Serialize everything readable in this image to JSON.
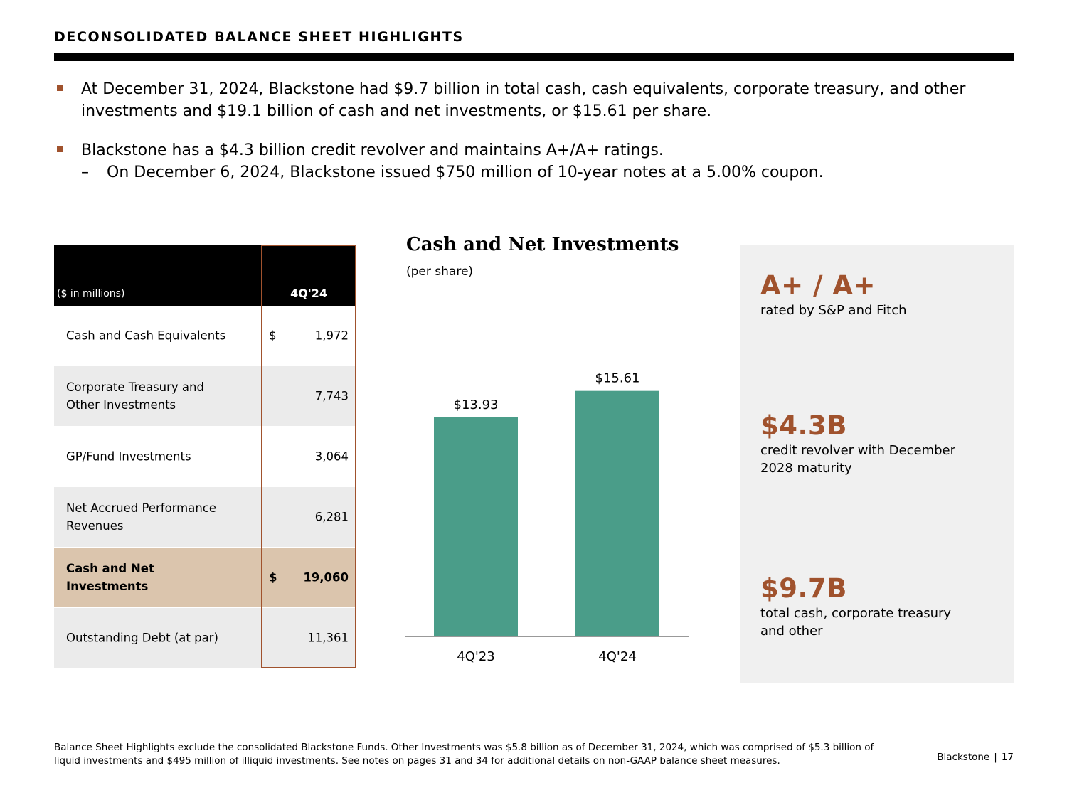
{
  "header": {
    "title": "DECONSOLIDATED BALANCE SHEET HIGHLIGHTS"
  },
  "bullets": {
    "b1": "At December 31, 2024, Blackstone had $9.7 billion in total cash, cash equivalents, corporate treasury, and other investments and $19.1 billion of cash and net investments, or $15.61 per share.",
    "b2": "Blackstone has a $4.3 billion credit revolver and maintains A+/A+ ratings.",
    "b2_sub_marker": "–",
    "b2_sub": "On December 6, 2024, Blackstone issued $750 million of 10-year notes at a 5.00% coupon."
  },
  "table": {
    "header_label": "($ in millions)",
    "header_period": "4Q'24",
    "rows": [
      {
        "label": "Cash and Cash Equivalents",
        "currency": "$",
        "value": "1,972",
        "style": "white"
      },
      {
        "label": "Corporate Treasury and Other Investments",
        "currency": "",
        "value": "7,743",
        "style": "shade"
      },
      {
        "label": "GP/Fund Investments",
        "currency": "",
        "value": "3,064",
        "style": "white"
      },
      {
        "label": "Net Accrued Performance Revenues",
        "currency": "",
        "value": "6,281",
        "style": "shade"
      },
      {
        "label": "Cash and Net Investments",
        "currency": "$",
        "value": "19,060",
        "style": "total"
      },
      {
        "label": "Outstanding Debt (at par)",
        "currency": "",
        "value": "11,361",
        "style": "shade"
      }
    ]
  },
  "chart_data": {
    "type": "bar",
    "title": "Cash and Net Investments",
    "subtitle": "(per share)",
    "categories": [
      "4Q'23",
      "4Q'24"
    ],
    "values": [
      13.93,
      15.61
    ],
    "value_labels": [
      "$13.93",
      "$15.61"
    ],
    "xlabel": "",
    "ylabel": "",
    "ylim": [
      0,
      18
    ],
    "grid": false,
    "bar_color": "#4a9d89"
  },
  "stats": {
    "rating": {
      "value": "A+ / A+",
      "desc": "rated by S&P and Fitch"
    },
    "revolver": {
      "value": "$4.3B",
      "desc": "credit revolver with December 2028 maturity"
    },
    "cash": {
      "value": "$9.7B",
      "desc": "total cash, corporate treasury and other"
    }
  },
  "footer": {
    "note": "Balance Sheet Highlights exclude the consolidated Blackstone Funds. Other Investments was $5.8 billion as of December 31, 2024, which was comprised of $5.3 billion of liquid investments and $495 million of illiquid investments. See notes on pages 31 and 34 for additional details on non-GAAP balance sheet measures.",
    "brand": "Blackstone",
    "separator": "|",
    "page": "17"
  },
  "colors": {
    "accent": "#a0522d",
    "bar": "#4a9d89",
    "total_row": "#dbc5ad",
    "shade_row": "#ebebeb",
    "panel": "#f0f0f0"
  }
}
